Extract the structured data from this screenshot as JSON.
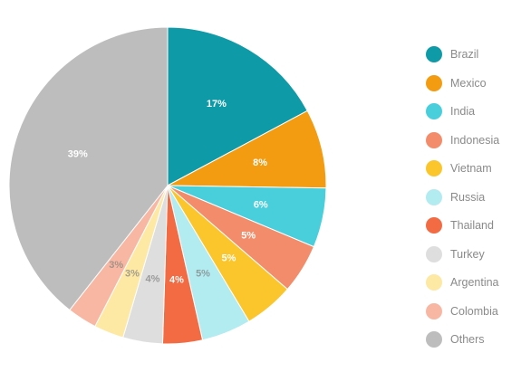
{
  "chart_data": {
    "type": "pie",
    "title": "",
    "start_angle_deg": 0,
    "direction": "clockwise",
    "slices": [
      {
        "name": "Brazil",
        "value": 17,
        "label": "17%",
        "color": "#0e9aa7",
        "label_color": "#ffffff"
      },
      {
        "name": "Mexico",
        "value": 8,
        "label": "8%",
        "color": "#f39c12",
        "label_color": "#ffffff"
      },
      {
        "name": "India",
        "value": 6,
        "label": "6%",
        "color": "#48cfdb",
        "label_color": "#ffffff"
      },
      {
        "name": "Indonesia",
        "value": 5,
        "label": "5%",
        "color": "#f28c6a",
        "label_color": "#ffffff"
      },
      {
        "name": "Vietnam",
        "value": 5,
        "label": "5%",
        "color": "#fbc52c",
        "label_color": "#ffffff"
      },
      {
        "name": "Russia",
        "value": 5,
        "label": "5%",
        "color": "#b2ebf0",
        "label_color": "#8d9ea0"
      },
      {
        "name": "Thailand",
        "value": 4,
        "label": "4%",
        "color": "#f26b43",
        "label_color": "#ffffff"
      },
      {
        "name": "Turkey",
        "value": 4,
        "label": "4%",
        "color": "#dedede",
        "label_color": "#9a9a9a"
      },
      {
        "name": "Argentina",
        "value": 3,
        "label": "3%",
        "color": "#fde8a4",
        "label_color": "#a5a08c"
      },
      {
        "name": "Colombia",
        "value": 3,
        "label": "3%",
        "color": "#f8b7a3",
        "label_color": "#a49388"
      },
      {
        "name": "Others",
        "value": 39,
        "label": "39%",
        "color": "#bdbdbd",
        "label_color": "#ffffff"
      }
    ],
    "legend": {
      "position": "right"
    }
  }
}
